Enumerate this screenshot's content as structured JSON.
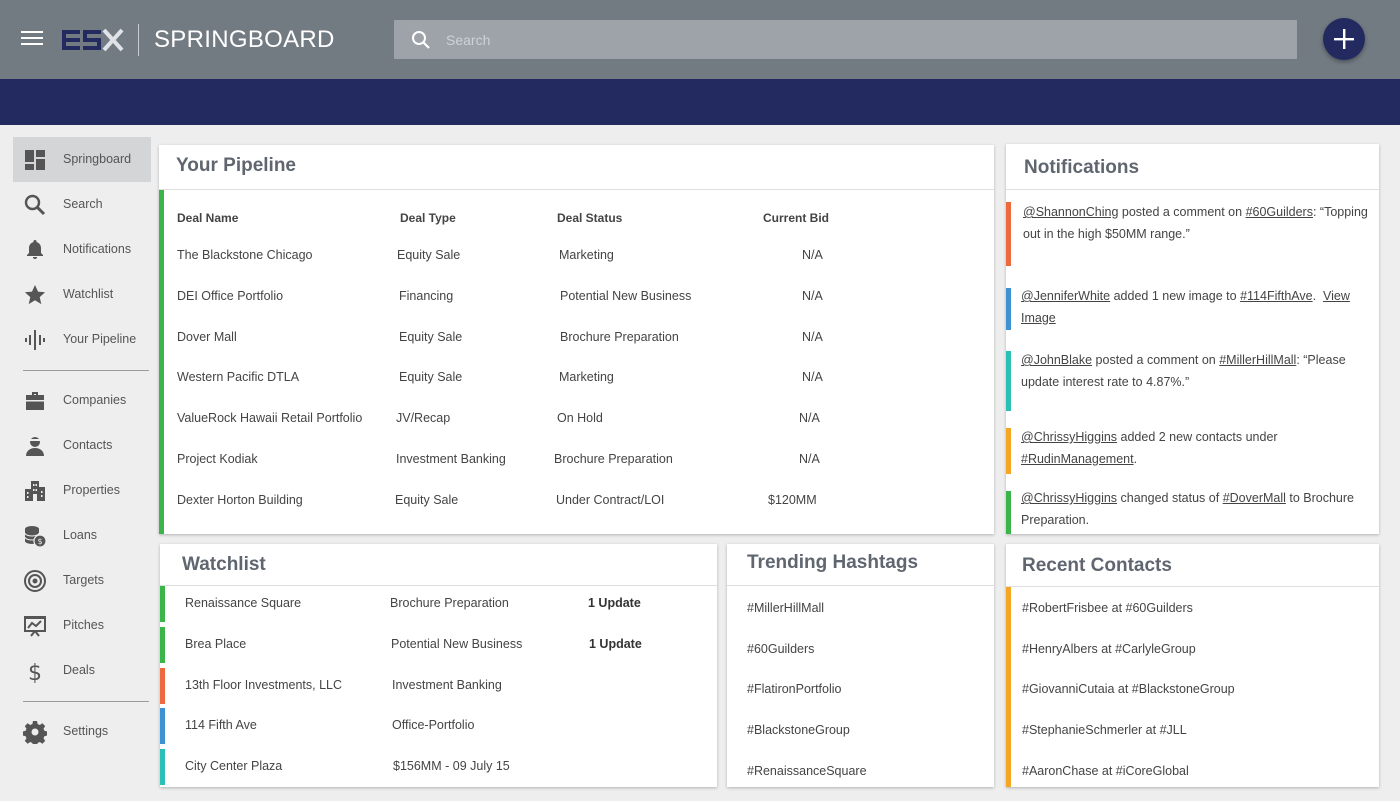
{
  "app": {
    "title": "SPRINGBOARD",
    "logo_text": "ESX"
  },
  "search": {
    "placeholder": "Search"
  },
  "sidebar": {
    "items": [
      {
        "label": "Springboard",
        "icon": "dashboard-icon",
        "active": true
      },
      {
        "label": "Search",
        "icon": "search-icon"
      },
      {
        "label": "Notifications",
        "icon": "bell-icon"
      },
      {
        "label": "Watchlist",
        "icon": "star-icon"
      },
      {
        "label": "Your Pipeline",
        "icon": "pipeline-icon"
      },
      {
        "label": "Companies",
        "icon": "briefcase-icon"
      },
      {
        "label": "Contacts",
        "icon": "contact-person-icon"
      },
      {
        "label": "Properties",
        "icon": "building-icon"
      },
      {
        "label": "Loans",
        "icon": "coins-icon"
      },
      {
        "label": "Targets",
        "icon": "target-icon"
      },
      {
        "label": "Pitches",
        "icon": "presentation-icon"
      },
      {
        "label": "Deals",
        "icon": "dollar-icon"
      },
      {
        "label": "Settings",
        "icon": "gear-icon"
      }
    ]
  },
  "pipeline": {
    "title": "Your Pipeline",
    "headers": [
      "Deal Name",
      "Deal Type",
      "Deal Status",
      "Current Bid"
    ],
    "rows": [
      [
        "The Blackstone Chicago",
        "Equity Sale",
        "Marketing",
        "N/A"
      ],
      [
        "DEI Office Portfolio",
        "Financing",
        "Potential New Business",
        "N/A"
      ],
      [
        "Dover Mall",
        "Equity Sale",
        "Brochure Preparation",
        "N/A"
      ],
      [
        "Western Pacific DTLA",
        "Equity Sale",
        "Marketing",
        "N/A"
      ],
      [
        "ValueRock Hawaii Retail Portfolio",
        "JV/Recap",
        "On Hold",
        "N/A"
      ],
      [
        "Project Kodiak",
        "Investment Banking",
        "Brochure Preparation",
        "N/A"
      ],
      [
        "Dexter Horton Building",
        "Equity Sale",
        "Under Contract/LOI",
        "$120MM"
      ]
    ]
  },
  "watchlist": {
    "title": "Watchlist",
    "rows": [
      {
        "name": "Renaissance Square",
        "status": "Brochure Preparation",
        "update": "1 Update",
        "color": "#3bb54a"
      },
      {
        "name": "Brea Place",
        "status": "Potential New Business",
        "update": "1 Update",
        "color": "#3bb54a"
      },
      {
        "name": "13th Floor Investments, LLC",
        "status": "Investment Banking",
        "update": "",
        "color": "#ec6a3e"
      },
      {
        "name": "114 Fifth Ave",
        "status": "Office-Portfolio",
        "update": "",
        "color": "#3f92d2"
      },
      {
        "name": "City Center Plaza",
        "status": "$156MM - 09 July 15",
        "update": "",
        "color": "#2bbfb5"
      }
    ]
  },
  "trending": {
    "title": "Trending Hashtags",
    "items": [
      "#MillerHillMall",
      "#60Guilders",
      "#FlatironPortfolio",
      "#BlackstoneGroup",
      "#RenaissanceSquare"
    ]
  },
  "notifications": {
    "title": "Notifications",
    "items": [
      {
        "color": "#ec6a3e",
        "user": "@ShannonChing",
        "text1": " posted a comment on ",
        "tag": "#60Guilders",
        "text2": ": “Topping out in the high $50MM range.”",
        "link": ""
      },
      {
        "color": "#3f92d2",
        "user": "@JenniferWhite",
        "text1": " added 1 new image to ",
        "tag": "#114FifthAve",
        "text2": ".  ",
        "link": "View Image"
      },
      {
        "color": "#2bbfb5",
        "user": "@JohnBlake",
        "text1": " posted a comment on ",
        "tag": "#MillerHillMall",
        "text2": ": “Please update interest rate to 4.87%.”",
        "link": ""
      },
      {
        "color": "#f5a623",
        "user": "@ChrissyHiggins",
        "text1": " added 2 new contacts under ",
        "tag": "#RudinManagement",
        "text2": ".",
        "link": ""
      },
      {
        "color": "#3bb54a",
        "user": "@ChrissyHiggins",
        "text1": " changed status of ",
        "tag": "#DoverMall",
        "text2": " to Brochure Preparation.",
        "link": ""
      }
    ]
  },
  "recent_contacts": {
    "title": "Recent Contacts",
    "items": [
      "#RobertFrisbee at #60Guilders",
      "#HenryAlbers at #CarlyleGroup",
      "#GiovanniCutaia at #BlackstoneGroup",
      "#StephanieSchmerler at #JLL",
      "#AaronChase at #iCoreGlobal"
    ]
  }
}
